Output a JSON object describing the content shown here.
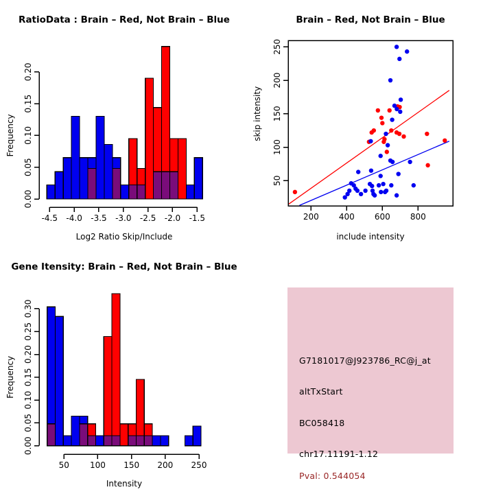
{
  "figure": {
    "background": "#ffffff",
    "point_color_note": "Brain = red, Not Brain = blue",
    "colors": {
      "red": "#ff0000",
      "blue": "#0000f0",
      "overlap_purple": "#7a0c7a",
      "axis": "#000000"
    }
  },
  "chart_data": [
    {
      "id": "ratio_hist",
      "type": "bar",
      "subtype": "overlaid-histogram",
      "title": "RatioData : Brain – Red, Not Brain – Blue",
      "xlabel": "Log2 Ratio Skip/Include",
      "ylabel": "Frequency",
      "bin_start": -4.556,
      "bin_width": 0.1667,
      "xlim": [
        -4.64,
        -1.31
      ],
      "ylim": [
        0,
        0.249
      ],
      "grid": false,
      "x_ticks": [
        {
          "v": -4.5,
          "l": "-4.5"
        },
        {
          "v": -4.0,
          "l": "-4.0"
        },
        {
          "v": -3.5,
          "l": "-3.5"
        },
        {
          "v": -3.0,
          "l": "-3.0"
        },
        {
          "v": -2.5,
          "l": "-2.5"
        },
        {
          "v": -2.0,
          "l": "-2.0"
        },
        {
          "v": -1.5,
          "l": "-1.5"
        }
      ],
      "y_ticks": [
        {
          "v": 0.0,
          "l": "0.00"
        },
        {
          "v": 0.05,
          "l": "0.05"
        },
        {
          "v": 0.1,
          "l": "0.10"
        },
        {
          "v": 0.15,
          "l": "0.15"
        },
        {
          "v": 0.2,
          "l": "0.20"
        }
      ],
      "series": [
        {
          "name": "Not Brain",
          "color": "#0000f0",
          "values": [
            0.022,
            0.043,
            0.065,
            0.13,
            0.065,
            0.065,
            0.13,
            0.086,
            0.065,
            0.022,
            0.022,
            0.022,
            0,
            0.043,
            0.043,
            0.043,
            0,
            0.022,
            0.065
          ]
        },
        {
          "name": "Brain",
          "color": "#ff0000",
          "values": [
            0,
            0,
            0,
            0,
            0,
            0.048,
            0,
            0,
            0.048,
            0,
            0.095,
            0.048,
            0.19,
            0.144,
            0.24,
            0.095,
            0.095,
            0,
            0
          ]
        }
      ],
      "overlap_color": "#7a0c7a"
    },
    {
      "id": "scatter",
      "type": "scatter",
      "title": "Brain – Red, Not Brain – Blue",
      "xlabel": "include intensity",
      "ylabel": "skip intensity",
      "xlim": [
        72,
        995
      ],
      "ylim": [
        9,
        259
      ],
      "grid": false,
      "x_ticks": [
        {
          "v": 200,
          "l": "200"
        },
        {
          "v": 400,
          "l": "400"
        },
        {
          "v": 600,
          "l": "600"
        },
        {
          "v": 800,
          "l": "800"
        }
      ],
      "y_ticks": [
        {
          "v": 50,
          "l": "50"
        },
        {
          "v": 100,
          "l": "100"
        },
        {
          "v": 150,
          "l": "150"
        },
        {
          "v": 200,
          "l": "200"
        },
        {
          "v": 250,
          "l": "250"
        }
      ],
      "series": [
        {
          "name": "Brain",
          "color": "#ff0000",
          "points": [
            [
              110,
              33
            ],
            [
              575,
              155
            ],
            [
              540,
              122
            ],
            [
              552,
              125
            ],
            [
              525,
              108
            ],
            [
              595,
              144
            ],
            [
              600,
              136
            ],
            [
              608,
              108
            ],
            [
              612,
              112
            ],
            [
              625,
              93
            ],
            [
              640,
              155
            ],
            [
              650,
              125
            ],
            [
              685,
              161
            ],
            [
              697,
              160
            ],
            [
              680,
              122
            ],
            [
              695,
              120
            ],
            [
              720,
              116
            ],
            [
              850,
              120
            ],
            [
              855,
              73
            ],
            [
              950,
              110
            ]
          ]
        },
        {
          "name": "Not Brain",
          "color": "#0000f0",
          "points": [
            [
              680,
              250
            ],
            [
              738,
              243
            ],
            [
              696,
              232
            ],
            [
              645,
              200
            ],
            [
              703,
              171
            ],
            [
              668,
              162
            ],
            [
              681,
              157
            ],
            [
              700,
              153
            ],
            [
              655,
              141
            ],
            [
              535,
              109
            ],
            [
              620,
              120
            ],
            [
              630,
              103
            ],
            [
              590,
              87
            ],
            [
              645,
              80
            ],
            [
              657,
              78
            ],
            [
              755,
              78
            ],
            [
              465,
              63
            ],
            [
              537,
              65
            ],
            [
              590,
              57
            ],
            [
              690,
              60
            ],
            [
              425,
              46
            ],
            [
              440,
              43
            ],
            [
              450,
              38
            ],
            [
              460,
              35
            ],
            [
              415,
              35
            ],
            [
              405,
              30
            ],
            [
              390,
              25
            ],
            [
              480,
              30
            ],
            [
              505,
              35
            ],
            [
              530,
              45
            ],
            [
              542,
              42
            ],
            [
              545,
              35
            ],
            [
              550,
              30
            ],
            [
              557,
              28
            ],
            [
              580,
              43
            ],
            [
              592,
              33
            ],
            [
              605,
              45
            ],
            [
              615,
              33
            ],
            [
              622,
              35
            ],
            [
              650,
              43
            ],
            [
              680,
              28
            ],
            [
              775,
              43
            ]
          ]
        }
      ],
      "lines": [
        {
          "name": "brain-fit",
          "color": "#ff0000",
          "x1": 75,
          "y1": 15,
          "x2": 975,
          "y2": 185
        },
        {
          "name": "notbrain-fit",
          "color": "#0000f0",
          "x1": 135,
          "y1": 13,
          "x2": 975,
          "y2": 109
        }
      ]
    },
    {
      "id": "gene_hist",
      "type": "bar",
      "subtype": "overlaid-histogram",
      "title": "Gene Itensity: Brain – Red, Not Brain – Blue",
      "xlabel": "Intensity",
      "ylabel": "Frequency",
      "bin_start": 25,
      "bin_width": 12,
      "xlim": [
        24,
        254
      ],
      "ylim": [
        0,
        0.345
      ],
      "grid": false,
      "x_ticks": [
        {
          "v": 50,
          "l": "50"
        },
        {
          "v": 100,
          "l": "100"
        },
        {
          "v": 150,
          "l": "150"
        },
        {
          "v": 200,
          "l": "200"
        },
        {
          "v": 250,
          "l": "250"
        }
      ],
      "y_ticks": [
        {
          "v": 0.0,
          "l": "0.00"
        },
        {
          "v": 0.05,
          "l": "0.05"
        },
        {
          "v": 0.1,
          "l": "0.10"
        },
        {
          "v": 0.15,
          "l": "0.15"
        },
        {
          "v": 0.2,
          "l": "0.20"
        },
        {
          "v": 0.25,
          "l": "0.25"
        },
        {
          "v": 0.3,
          "l": "0.30"
        }
      ],
      "series": [
        {
          "name": "Not Brain",
          "color": "#0000f0",
          "values": [
            0.304,
            0.283,
            0.022,
            0.065,
            0.065,
            0.022,
            0.022,
            0.022,
            0.022,
            0,
            0.022,
            0.022,
            0.022,
            0.022,
            0.022,
            0,
            0,
            0.022,
            0.043
          ]
        },
        {
          "name": "Brain",
          "color": "#ff0000",
          "values": [
            0.048,
            0,
            0,
            0,
            0.048,
            0.048,
            0,
            0.239,
            0.333,
            0.048,
            0.048,
            0.145,
            0.048,
            0,
            0,
            0,
            0,
            0,
            0
          ]
        }
      ],
      "overlap_color": "#7a0c7a"
    }
  ],
  "info_box": {
    "background": "#edc8d2",
    "lines": [
      "G7181017@J923786_RC@j_at",
      "altTxStart",
      "BC058418",
      "chr17.11191-1.12"
    ],
    "pval": "Pval: 0.544054",
    "pval_color": "#992626"
  }
}
